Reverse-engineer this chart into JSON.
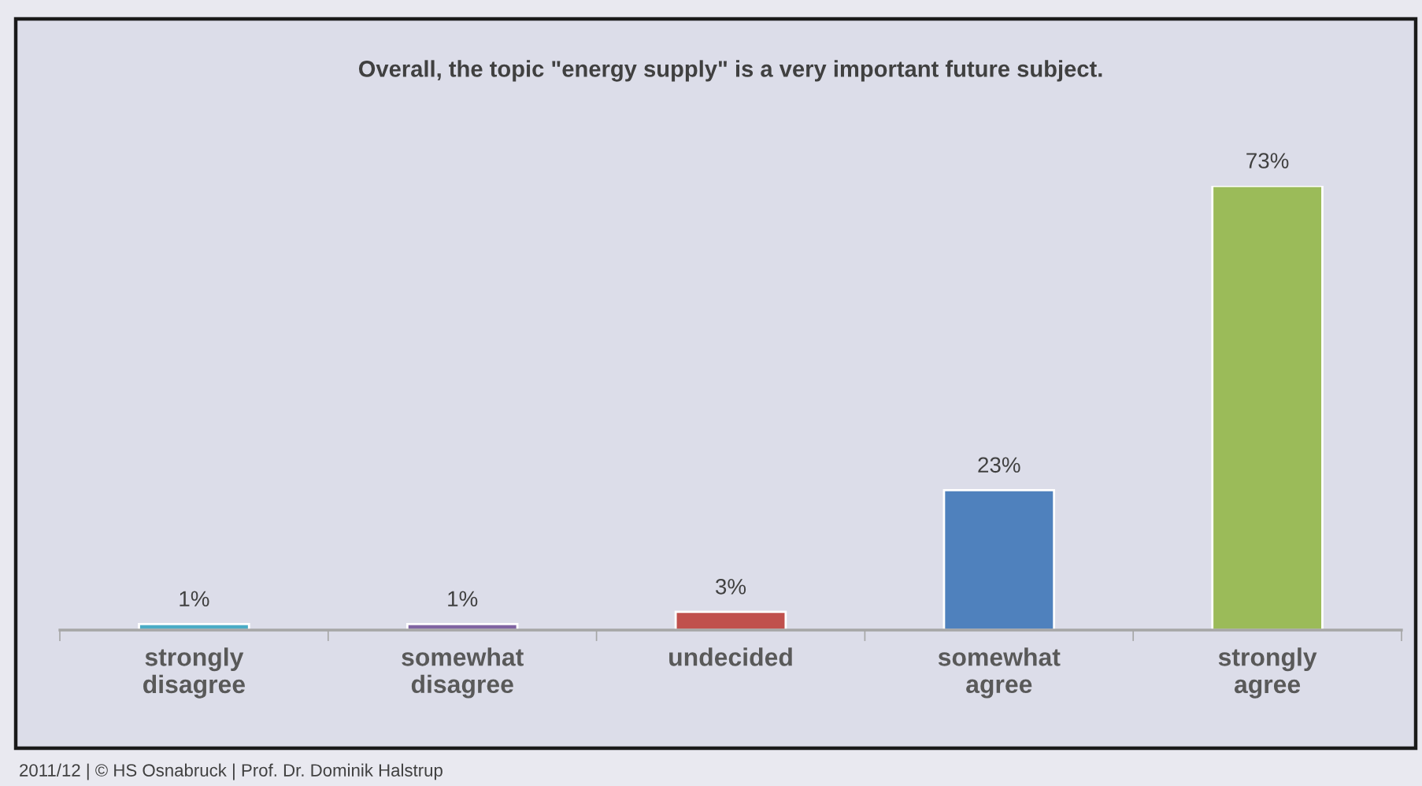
{
  "chart_data": {
    "type": "bar",
    "title": "Overall, the topic \"energy supply\" is a very important future subject.",
    "categories": [
      "strongly\ndisagree",
      "somewhat\ndisagree",
      "undecided",
      "somewhat\nagree",
      "strongly\nagree"
    ],
    "values": [
      1,
      1,
      3,
      23,
      73
    ],
    "colors": [
      "#4bacc6",
      "#8064a2",
      "#c0504d",
      "#4f81bd",
      "#9bbb59"
    ],
    "value_labels": [
      "1%",
      "1%",
      "3%",
      "23%",
      "73%"
    ],
    "annotations": [
      "2011/12 | © HS Osnabruck | Prof. Dr. Dominik Halstrup"
    ]
  }
}
